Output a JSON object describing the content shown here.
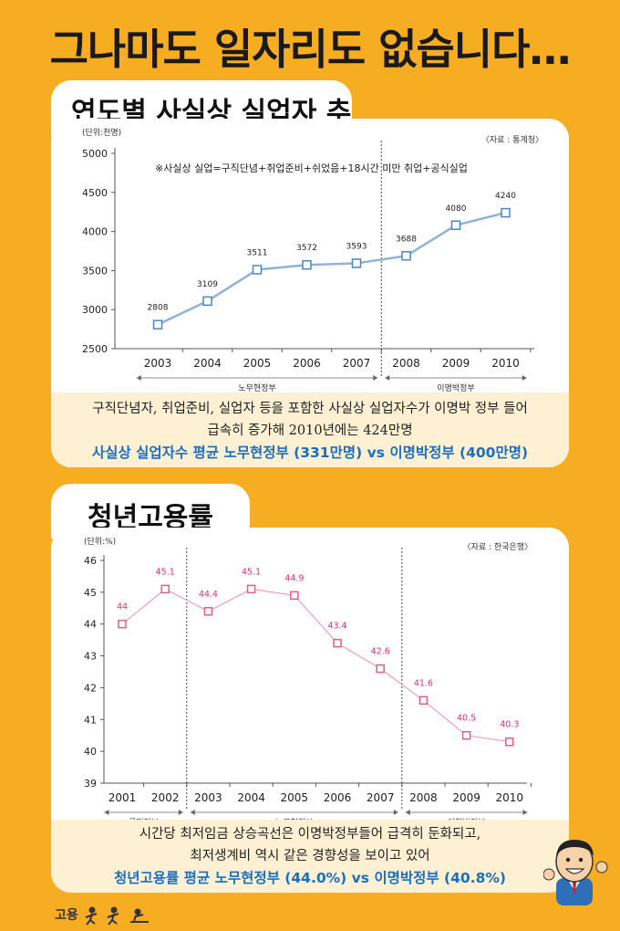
{
  "page": {
    "title": "그나마도 일자리도 없습니다…",
    "footer_logo": "고용"
  },
  "section1": {
    "tab_title": "연도별 사실상 실업자 추이",
    "caption_line1": "구직단념자, 취업준비, 실업자 등을 포함한 사실상 실업자수가 이명박 정부 들어",
    "caption_line2": "급속히 증가해 2010년에는 424만명",
    "caption_highlight": "사실상 실업자수 평균 노무현정부 (331만명) vs 이명박정부 (400만명)"
  },
  "section2": {
    "tab_title": "청년고용률",
    "caption_line1": "시간당 최저임금 상승곡선은 이명박정부들어 급격히 둔화되고,",
    "caption_line2": "최저생계비 역시 같은 경향성을 보이고 있어",
    "caption_highlight": "청년고용률 평균 노무현정부 (44.0%) vs 이명박정부 (40.8%)"
  },
  "chart_data": [
    {
      "type": "line",
      "unit_label": "(단위:천명)",
      "source": "〈자료 : 통계청〉",
      "note": "※사실상 실업=구직단념+취업준비+쉬었음+18시간 미만 취업+공식실업",
      "categories": [
        "2003",
        "2004",
        "2005",
        "2006",
        "2007",
        "2008",
        "2009",
        "2010"
      ],
      "values": [
        2808,
        3109,
        3511,
        3572,
        3593,
        3688,
        4080,
        4240
      ],
      "value_labels": [
        "2808",
        "3109",
        "3511",
        "3572",
        "3593",
        "3688",
        "4080",
        "4240"
      ],
      "ylim": [
        2500,
        5000
      ],
      "yticks": [
        "5000",
        "4500",
        "4000",
        "3500",
        "3000",
        "2500"
      ],
      "periods": [
        {
          "label": "노무현정부",
          "from": "2003",
          "to": "2007"
        },
        {
          "label": "이명박정부",
          "from": "2008",
          "to": "2010"
        }
      ],
      "color": "#8fb2dc"
    },
    {
      "type": "line",
      "unit_label": "(단위:%)",
      "source": "〈자료 : 한국은행〉",
      "categories": [
        "2001",
        "2002",
        "2003",
        "2004",
        "2005",
        "2006",
        "2007",
        "2008",
        "2009",
        "2010"
      ],
      "values": [
        44.0,
        45.1,
        44.4,
        45.1,
        44.9,
        43.4,
        42.6,
        41.6,
        40.5,
        40.3
      ],
      "value_labels": [
        "44",
        "45.1",
        "44.4",
        "45.1",
        "44.9",
        "43.4",
        "42.6",
        "41.6",
        "40.5",
        "40.3"
      ],
      "ylim": [
        39,
        46
      ],
      "yticks": [
        "46",
        "45",
        "44",
        "43",
        "42",
        "41",
        "40",
        "39"
      ],
      "periods": [
        {
          "label": "국민정부",
          "from": "2001",
          "to": "2002"
        },
        {
          "label": "노무현정부",
          "from": "2003",
          "to": "2007"
        },
        {
          "label": "이명박정부",
          "from": "2008",
          "to": "2010"
        }
      ],
      "color": "#f0a0b4",
      "label_color": "#e0306a"
    }
  ]
}
